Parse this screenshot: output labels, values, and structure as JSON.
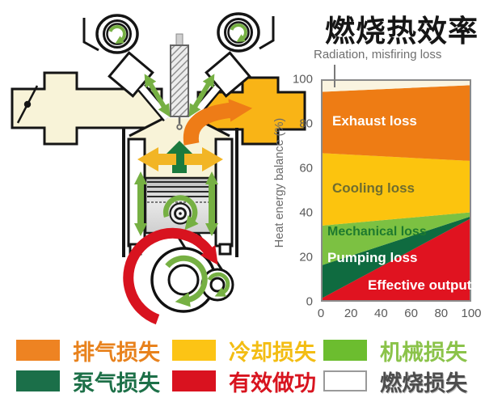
{
  "title": "燃烧热效率",
  "chart": {
    "ylabel": "Heat energy balance (%)"
  },
  "chart_data": {
    "type": "area",
    "stacked": true,
    "title": "燃烧热效率",
    "xlabel": "",
    "ylabel": "Heat energy balance (%)",
    "xlim": [
      0,
      100
    ],
    "ylim": [
      0,
      100
    ],
    "xticks": [
      0,
      20,
      40,
      60,
      80,
      100
    ],
    "yticks": [
      0,
      20,
      40,
      60,
      80,
      100
    ],
    "grid": false,
    "legend_position": "none",
    "x": [
      0,
      100
    ],
    "series": [
      {
        "name": "Effective output",
        "top": [
          1,
          37
        ],
        "color": "#e01320",
        "label_color": "#ffffff"
      },
      {
        "name": "Pumping loss",
        "top": [
          16,
          38
        ],
        "color": "#0f6b40",
        "label_color": "#ffffff"
      },
      {
        "name": "Mechanical loss",
        "top": [
          34,
          40
        ],
        "color": "#7cc142",
        "label_color": "#1e7a2e"
      },
      {
        "name": "Cooling loss",
        "top": [
          67,
          63.5
        ],
        "color": "#fcc40e",
        "label_color": "#6f6d2f"
      },
      {
        "name": "Exhaust loss",
        "top": [
          95,
          98
        ],
        "color": "#ee7c14",
        "label_color": "#ffffff"
      },
      {
        "name": "Radiation, misfiring loss",
        "top": [
          100,
          100
        ],
        "color": "#faf4e0",
        "label_color": "#6f6f6f"
      }
    ],
    "note": "Stacked heat-energy balance bands; 'top' gives cumulative % boundary at x=0 and x=100"
  },
  "legend": {
    "items": [
      {
        "label": "排气损失",
        "color": "#ee8322",
        "text_color": "#e8821d"
      },
      {
        "label": "冷却损失",
        "color": "#fcc415",
        "text_color": "#f3bd13"
      },
      {
        "label": "机械损失",
        "color": "#6cbd2f",
        "text_color": "#8bc34a"
      },
      {
        "label": "泵气损失",
        "color": "#1b6f49",
        "text_color": "#1d7048"
      },
      {
        "label": "有效做功",
        "color": "#d9121f",
        "text_color": "#d8141f"
      },
      {
        "label": "燃烧损失",
        "color": "#ffffff",
        "text_color": "#4d4d4d"
      }
    ]
  },
  "diagram": {
    "name": "engine-cross-section"
  }
}
